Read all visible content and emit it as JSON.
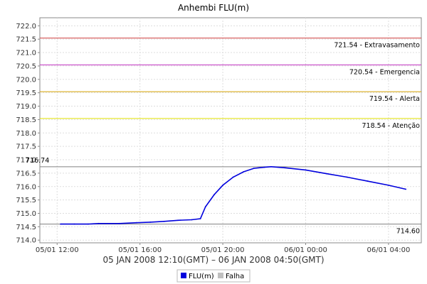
{
  "chart_data": {
    "type": "line",
    "title": "Anhembi FLU(m)",
    "xlabel": "05 JAN 2008 12:10(GMT) – 06 JAN 2008 04:50(GMT)",
    "ylabel": "",
    "ylim": [
      713.9,
      722.3
    ],
    "yticks": [
      "714.0",
      "714.5",
      "715.0",
      "715.5",
      "716.0",
      "716.5",
      "717.0",
      "717.5",
      "718.0",
      "718.5",
      "719.0",
      "719.5",
      "720.0",
      "720.5",
      "721.0",
      "721.5",
      "722.0"
    ],
    "xticks": [
      {
        "t": "2008-01-05T12:00",
        "label": "05/01 12:00"
      },
      {
        "t": "2008-01-05T16:00",
        "label": "05/01 16:00"
      },
      {
        "t": "2008-01-05T20:00",
        "label": "05/01 20:00"
      },
      {
        "t": "2008-01-06T00:00",
        "label": "06/01 00:00"
      },
      {
        "t": "2008-01-06T04:00",
        "label": "06/01 04:00"
      }
    ],
    "xrange": [
      "2008-01-05T11:10",
      "2008-01-06T05:35"
    ],
    "grid": true,
    "reference_lines": [
      {
        "value": 721.54,
        "label": "721.54 - Extravasamento",
        "color": "#d04040"
      },
      {
        "value": 720.54,
        "label": "720.54 - Emergencia",
        "color": "#c030c0"
      },
      {
        "value": 719.54,
        "label": "719.54 - Alerta",
        "color": "#d4a000"
      },
      {
        "value": 718.54,
        "label": "718.54 - Atenção",
        "color": "#e0e000"
      },
      {
        "value": 716.74,
        "label": "716.74",
        "color": "#808080",
        "label_side": "left"
      },
      {
        "value": 714.6,
        "label": "714.60",
        "color": "#808080",
        "label_side": "right-below"
      }
    ],
    "series": [
      {
        "name": "FLU(m)",
        "color": "#0000dd",
        "points": [
          [
            "2008-01-05T12:10",
            714.6
          ],
          [
            "2008-01-05T12:50",
            714.6
          ],
          [
            "2008-01-05T13:30",
            714.6
          ],
          [
            "2008-01-05T14:00",
            714.62
          ],
          [
            "2008-01-05T15:00",
            714.62
          ],
          [
            "2008-01-05T15:50",
            714.65
          ],
          [
            "2008-01-05T16:30",
            714.67
          ],
          [
            "2008-01-05T17:10",
            714.7
          ],
          [
            "2008-01-05T17:50",
            714.74
          ],
          [
            "2008-01-05T18:30",
            714.76
          ],
          [
            "2008-01-05T18:55",
            714.8
          ],
          [
            "2008-01-05T19:10",
            715.25
          ],
          [
            "2008-01-05T19:35",
            715.7
          ],
          [
            "2008-01-05T20:00",
            716.05
          ],
          [
            "2008-01-05T20:30",
            716.35
          ],
          [
            "2008-01-05T21:00",
            716.55
          ],
          [
            "2008-01-05T21:30",
            716.68
          ],
          [
            "2008-01-05T22:00",
            716.72
          ],
          [
            "2008-01-05T22:20",
            716.74
          ],
          [
            "2008-01-05T23:00",
            716.7
          ],
          [
            "2008-01-06T00:00",
            716.62
          ],
          [
            "2008-01-06T01:00",
            716.48
          ],
          [
            "2008-01-06T02:00",
            716.35
          ],
          [
            "2008-01-06T03:00",
            716.2
          ],
          [
            "2008-01-06T04:00",
            716.05
          ],
          [
            "2008-01-06T04:50",
            715.9
          ]
        ]
      },
      {
        "name": "Falha",
        "color": "#c0c0c0",
        "points": []
      }
    ],
    "legend": {
      "position": "bottom-center",
      "items": [
        {
          "label": "FLU(m)",
          "color": "#0000dd"
        },
        {
          "label": "Falha",
          "color": "#c0c0c0"
        }
      ]
    }
  }
}
